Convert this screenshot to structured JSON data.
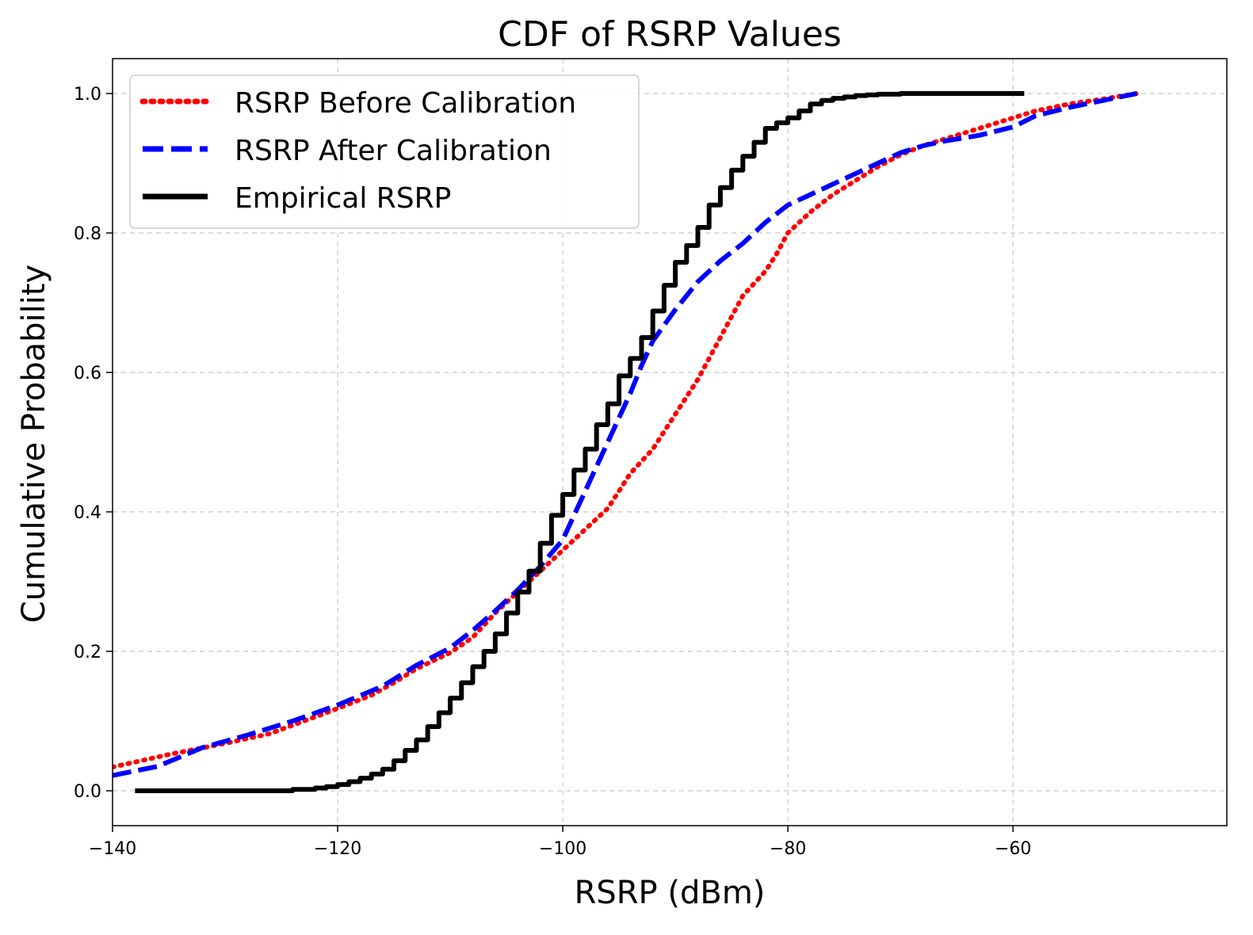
{
  "chart_data": {
    "type": "line",
    "title": "CDF of RSRP Values",
    "xlabel": "RSRP (dBm)",
    "ylabel": "Cumulative Probability",
    "xlim": [
      -140,
      -41
    ],
    "ylim": [
      -0.05,
      1.05
    ],
    "grid": true,
    "legend_position": "top-left",
    "x_ticks": [
      -140,
      -120,
      -100,
      -80,
      -60
    ],
    "x_tick_labels": [
      "−140",
      "−120",
      "−100",
      "−80",
      "−60"
    ],
    "y_ticks": [
      0.0,
      0.2,
      0.4,
      0.6,
      0.8,
      1.0
    ],
    "y_tick_labels": [
      "0.0",
      "0.2",
      "0.4",
      "0.6",
      "0.8",
      "1.0"
    ],
    "series": [
      {
        "name": "RSRP Before Calibration",
        "color": "#ff0000",
        "style": "dotted",
        "x": [
          -140,
          -135,
          -130,
          -126,
          -123,
          -120,
          -117,
          -115,
          -113,
          -110,
          -108,
          -106,
          -104,
          -102,
          -100,
          -98,
          -96,
          -95,
          -94,
          -92,
          -90,
          -88,
          -87,
          -86,
          -85,
          -84,
          -82,
          -81,
          -80,
          -78,
          -76,
          -74,
          -72,
          -70,
          -68,
          -65,
          -62,
          -60,
          -58,
          -55,
          -52,
          -49
        ],
        "y": [
          0.034,
          0.052,
          0.068,
          0.082,
          0.1,
          0.118,
          0.137,
          0.155,
          0.175,
          0.198,
          0.22,
          0.255,
          0.285,
          0.315,
          0.345,
          0.375,
          0.405,
          0.43,
          0.455,
          0.49,
          0.54,
          0.59,
          0.62,
          0.65,
          0.68,
          0.71,
          0.745,
          0.77,
          0.8,
          0.83,
          0.855,
          0.875,
          0.895,
          0.912,
          0.925,
          0.94,
          0.955,
          0.965,
          0.975,
          0.985,
          0.992,
          1.0
        ]
      },
      {
        "name": "RSRP After Calibration",
        "color": "#0000ff",
        "style": "dashed",
        "x": [
          -140,
          -136,
          -132,
          -128,
          -124,
          -120,
          -116,
          -113,
          -110,
          -108,
          -106,
          -104,
          -102,
          -100,
          -99,
          -98,
          -97,
          -96,
          -95,
          -94,
          -93,
          -92,
          -90,
          -88,
          -86,
          -84,
          -82,
          -80,
          -78,
          -76,
          -74,
          -72,
          -70,
          -68,
          -66,
          -63,
          -60,
          -58,
          -55,
          -52,
          -49
        ],
        "y": [
          0.022,
          0.035,
          0.062,
          0.08,
          0.1,
          0.123,
          0.15,
          0.18,
          0.205,
          0.23,
          0.258,
          0.288,
          0.322,
          0.36,
          0.395,
          0.43,
          0.465,
          0.5,
          0.535,
          0.57,
          0.61,
          0.645,
          0.69,
          0.73,
          0.76,
          0.785,
          0.815,
          0.84,
          0.855,
          0.87,
          0.885,
          0.9,
          0.915,
          0.925,
          0.932,
          0.94,
          0.952,
          0.968,
          0.98,
          0.99,
          1.0
        ]
      },
      {
        "name": "Empirical RSRP",
        "color": "#000000",
        "style": "step",
        "x": [
          -138,
          -124,
          -122,
          -121,
          -120,
          -119,
          -118,
          -117,
          -116,
          -115,
          -114,
          -113,
          -112,
          -111,
          -110,
          -109,
          -108,
          -107,
          -106,
          -105,
          -104,
          -103,
          -102,
          -101,
          -100,
          -99,
          -98,
          -97,
          -96,
          -95,
          -94,
          -93,
          -92,
          -91,
          -90,
          -89,
          -88,
          -87,
          -86,
          -85,
          -84,
          -83,
          -82,
          -81,
          -80,
          -79,
          -78,
          -77,
          -76,
          -75,
          -74,
          -73,
          -72,
          -70,
          -67,
          -64,
          -62,
          -59
        ],
        "y": [
          0.0,
          0.002,
          0.004,
          0.006,
          0.009,
          0.013,
          0.018,
          0.024,
          0.031,
          0.043,
          0.058,
          0.073,
          0.092,
          0.112,
          0.133,
          0.155,
          0.178,
          0.2,
          0.225,
          0.255,
          0.285,
          0.315,
          0.355,
          0.395,
          0.425,
          0.46,
          0.49,
          0.525,
          0.555,
          0.595,
          0.62,
          0.65,
          0.688,
          0.725,
          0.758,
          0.782,
          0.808,
          0.84,
          0.865,
          0.89,
          0.91,
          0.93,
          0.95,
          0.958,
          0.965,
          0.975,
          0.985,
          0.99,
          0.993,
          0.995,
          0.997,
          0.998,
          0.999,
          1.0,
          1.0,
          1.0,
          1.0,
          1.0
        ]
      }
    ]
  }
}
